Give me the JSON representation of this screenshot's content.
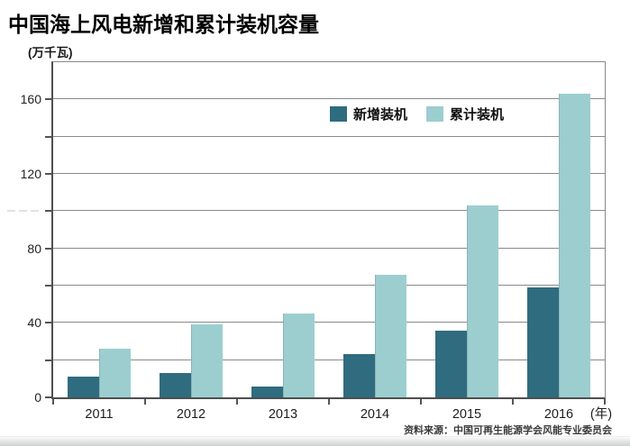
{
  "page": {
    "source_note": "资料来源：中国可再生能源学会风能专业委员会"
  },
  "chart_data": {
    "type": "bar",
    "title": "中国海上风电新增和累计装机容量",
    "unit_label": "(万千瓦)",
    "x_unit_label": "(年)",
    "categories": [
      "2011",
      "2012",
      "2013",
      "2014",
      "2015",
      "2016"
    ],
    "series": [
      {
        "name": "新增装机",
        "color": "#2f6c7f",
        "values": [
          11,
          13,
          6,
          23,
          36,
          59
        ]
      },
      {
        "name": "累计装机",
        "color": "#9cced0",
        "values": [
          26,
          39,
          45,
          66,
          103,
          163
        ]
      }
    ],
    "ylabel": "(万千瓦)",
    "xlabel": "(年)",
    "ylim": [
      0,
      180
    ],
    "grid_step": 20,
    "ytick_label_step": 40,
    "grid": true,
    "legend_position": "inside-top-right",
    "grid_color": "#8a8a8a",
    "axis_color": "#4f4f4f",
    "tick_color": "#555555"
  }
}
